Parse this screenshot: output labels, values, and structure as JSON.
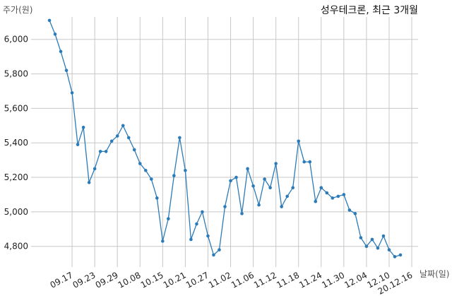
{
  "chart_data": {
    "type": "line",
    "title": "성우테크론, 최근 3개월",
    "ylabel": "주가(원)",
    "xlabel": "날짜(일)",
    "ylim": [
      4680,
      6130
    ],
    "yticks": [
      4800,
      5000,
      5200,
      5400,
      5600,
      5800,
      6000
    ],
    "ytick_labels": [
      "4,800",
      "5,000",
      "5,200",
      "5,400",
      "5,600",
      "5,800",
      "6,000"
    ],
    "xtick_labels": [
      "09.17",
      "09.23",
      "09.29",
      "10.08",
      "10.15",
      "10.21",
      "10.27",
      "11.02",
      "11.06",
      "11.12",
      "11.18",
      "11.24",
      "11.30",
      "12.04",
      "12.10",
      "20.12.16"
    ],
    "xtick_index": [
      4,
      8,
      12,
      16,
      20,
      24,
      28,
      32,
      36,
      40,
      44,
      48,
      52,
      56,
      60,
      64
    ],
    "grid": true,
    "color": "#2b7bb9",
    "series": [
      {
        "values": [
          6110,
          6030,
          5930,
          5820,
          5690,
          5390,
          5490,
          5170,
          5250,
          5350,
          5350,
          5410,
          5440,
          5500,
          5430,
          5360,
          5280,
          5240,
          5190,
          5080,
          4830,
          4960,
          5210,
          5430,
          5240,
          4840,
          4930,
          5000,
          4860,
          4750,
          4780,
          5030,
          5180,
          5200,
          4990,
          5250,
          5150,
          5040,
          5190,
          5140,
          5280,
          5030,
          5090,
          5140,
          5410,
          5290,
          5290,
          5060,
          5140,
          5110,
          5080,
          5090,
          5100,
          5010,
          4990,
          4850,
          4800,
          4840,
          4790,
          4860,
          4780,
          4740,
          4750
        ]
      }
    ]
  }
}
